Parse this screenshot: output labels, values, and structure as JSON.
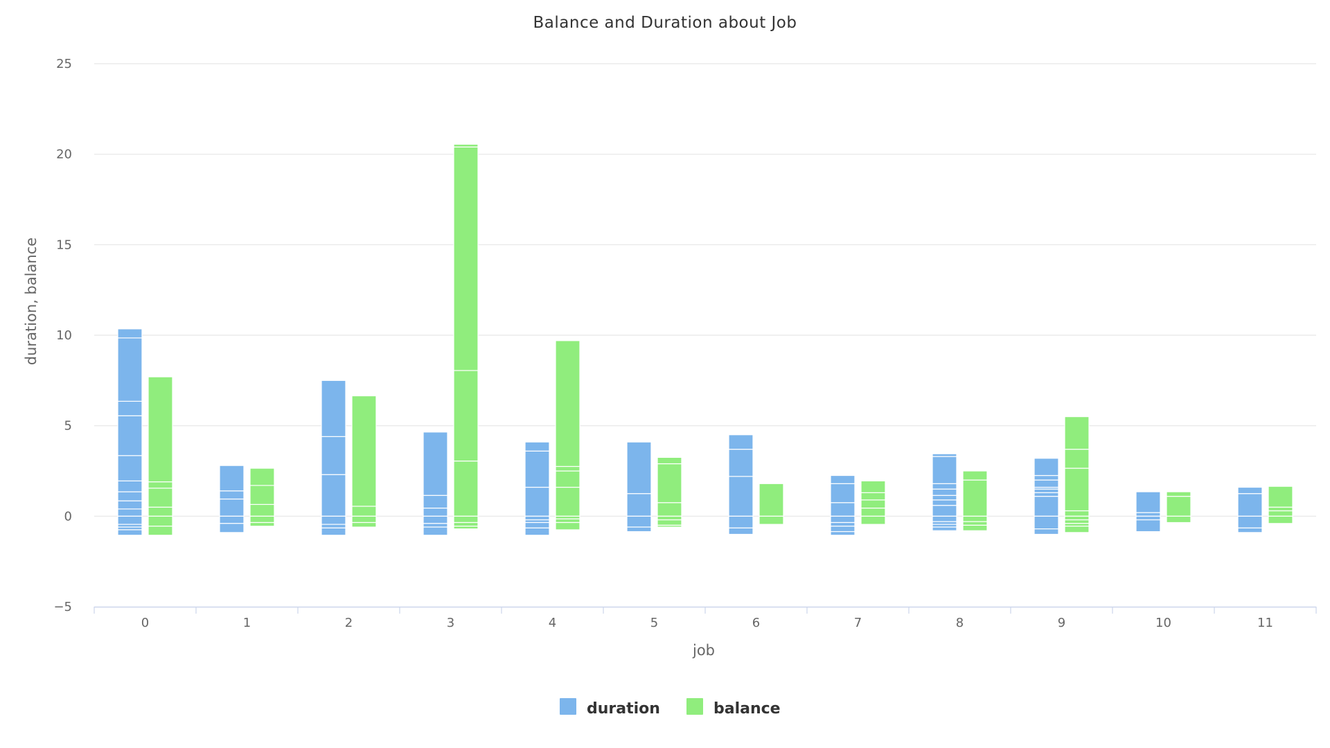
{
  "chart_data": {
    "type": "bar",
    "stacking": "normal",
    "title": "Balance and Duration about Job",
    "xlabel": "job",
    "ylabel": "duration, balance",
    "categories": [
      "0",
      "1",
      "2",
      "3",
      "4",
      "5",
      "6",
      "7",
      "8",
      "9",
      "10",
      "11"
    ],
    "ylim": [
      -5,
      25
    ],
    "yticks": [
      "−5",
      "0",
      "5",
      "10",
      "15",
      "20",
      "25"
    ],
    "yticks_values": [
      -5,
      0,
      5,
      10,
      15,
      20,
      25
    ],
    "grid": true,
    "legend_position": "bottom-center",
    "series": [
      {
        "name": "duration",
        "color": "#7cb5ec",
        "segments": [
          [
            0.4,
            0.45,
            0.5,
            0.6,
            1.4,
            2.2,
            0.8,
            3.5,
            0.5,
            -0.45,
            -0.15,
            -0.15,
            -0.3
          ],
          [
            0.95,
            0.45,
            1.4,
            -0.4,
            -0.5
          ],
          [
            2.3,
            2.1,
            3.1,
            -0.45,
            -0.2,
            -0.4
          ],
          [
            0.45,
            0.7,
            3.5,
            -0.4,
            -0.2,
            -0.45
          ],
          [
            1.6,
            2.0,
            0.5,
            -0.2,
            -0.15,
            -0.3,
            -0.4
          ],
          [
            1.25,
            2.85,
            -0.6,
            -0.25
          ],
          [
            2.2,
            1.5,
            0.8,
            -0.65,
            -0.35
          ],
          [
            0.75,
            1.05,
            0.45,
            -0.35,
            -0.2,
            -0.3,
            -0.2
          ],
          [
            0.6,
            0.3,
            0.25,
            0.35,
            0.3,
            1.5,
            0.15,
            -0.3,
            -0.15,
            -0.15,
            -0.2
          ],
          [
            1.1,
            0.2,
            0.2,
            0.1,
            0.4,
            0.25,
            0.95,
            -0.7,
            -0.3
          ],
          [
            0.2,
            1.15,
            -0.2,
            -0.65
          ],
          [
            1.25,
            0.35,
            -0.65,
            -0.25
          ]
        ]
      },
      {
        "name": "balance",
        "color": "#90ed7d",
        "segments": [
          [
            0.5,
            1.05,
            0.35,
            5.8,
            -0.55,
            -0.5
          ],
          [
            0.65,
            1.05,
            0.95,
            -0.35,
            -0.2
          ],
          [
            0.55,
            6.1,
            -0.35,
            -0.25
          ],
          [
            3.05,
            5.0,
            12.35,
            0.15,
            -0.35,
            -0.2,
            -0.15
          ],
          [
            1.6,
            0.9,
            0.25,
            6.95,
            -0.15,
            -0.2,
            -0.4
          ],
          [
            0.75,
            2.15,
            0.35,
            -0.2,
            -0.3,
            -0.1
          ],
          [
            1.8,
            -0.45
          ],
          [
            0.45,
            0.45,
            0.4,
            0.65,
            -0.45
          ],
          [
            2.0,
            0.5,
            -0.3,
            -0.2,
            -0.3
          ],
          [
            0.3,
            2.35,
            1.05,
            1.8,
            -0.2,
            -0.2,
            -0.15,
            -0.35
          ],
          [
            1.1,
            0.25,
            -0.35
          ],
          [
            0.3,
            0.2,
            1.15,
            -0.4
          ]
        ]
      }
    ]
  }
}
